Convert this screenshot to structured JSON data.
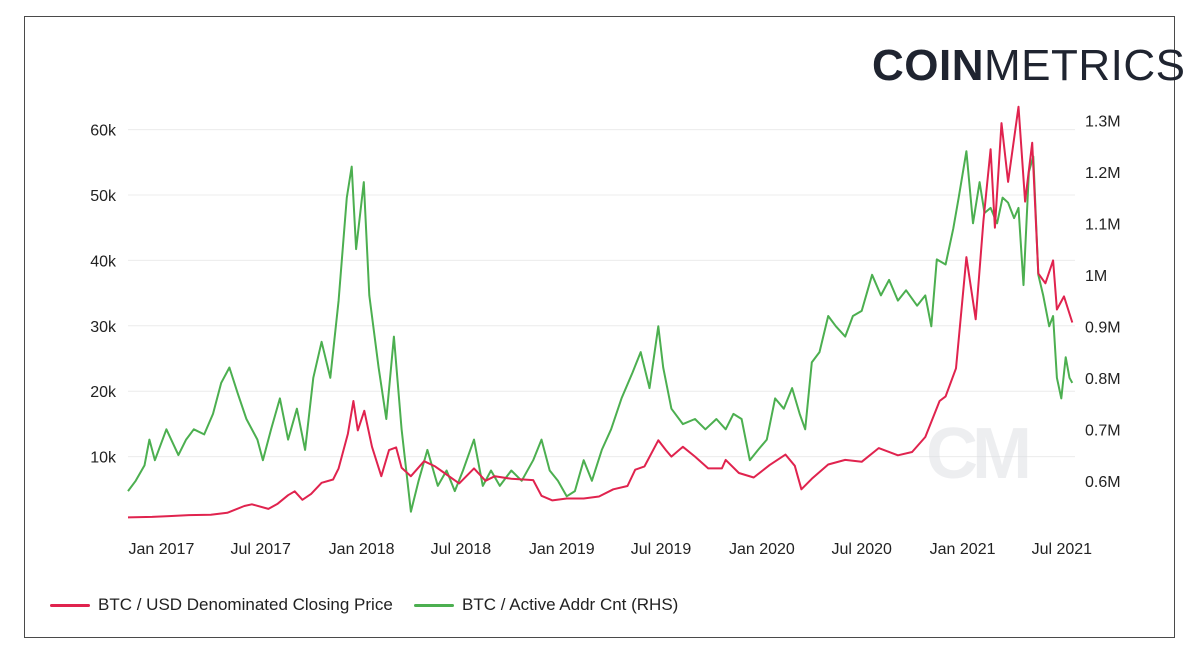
{
  "brand": {
    "bold": "COIN",
    "light": "METRICS"
  },
  "watermark": "CM",
  "chart_data": {
    "type": "line",
    "title": "",
    "x_start": "2016-11-01",
    "x_end": "2021-07-25",
    "x_ticks": [
      {
        "label": "Jan 2017",
        "date": "2017-01-01"
      },
      {
        "label": "Jul 2017",
        "date": "2017-07-01"
      },
      {
        "label": "Jan 2018",
        "date": "2018-01-01"
      },
      {
        "label": "Jul 2018",
        "date": "2018-07-01"
      },
      {
        "label": "Jan 2019",
        "date": "2019-01-01"
      },
      {
        "label": "Jul 2019",
        "date": "2019-07-01"
      },
      {
        "label": "Jan 2020",
        "date": "2020-01-01"
      },
      {
        "label": "Jul 2020",
        "date": "2020-07-01"
      },
      {
        "label": "Jan 2021",
        "date": "2021-01-01"
      },
      {
        "label": "Jul 2021",
        "date": "2021-07-01"
      }
    ],
    "y_left": {
      "range": [
        0,
        63000
      ],
      "ticks": [
        {
          "label": "10k",
          "value": 10000
        },
        {
          "label": "20k",
          "value": 20000
        },
        {
          "label": "30k",
          "value": 30000
        },
        {
          "label": "40k",
          "value": 40000
        },
        {
          "label": "50k",
          "value": 50000
        },
        {
          "label": "60k",
          "value": 60000
        }
      ]
    },
    "y_right": {
      "range": [
        520000,
        1320000
      ],
      "ticks": [
        {
          "label": "0.6M",
          "value": 600000
        },
        {
          "label": "0.7M",
          "value": 700000
        },
        {
          "label": "0.8M",
          "value": 800000
        },
        {
          "label": "0.9M",
          "value": 900000
        },
        {
          "label": "1M",
          "value": 1000000
        },
        {
          "label": "1.1M",
          "value": 1100000
        },
        {
          "label": "1.2M",
          "value": 1200000
        },
        {
          "label": "1.3M",
          "value": 1300000
        }
      ]
    },
    "series": [
      {
        "name": "BTC / USD Denominated Closing Price",
        "axis": "left",
        "color": "#e0234e",
        "points": [
          [
            "2016-11-01",
            700
          ],
          [
            "2016-12-15",
            780
          ],
          [
            "2017-01-15",
            900
          ],
          [
            "2017-02-20",
            1050
          ],
          [
            "2017-04-01",
            1100
          ],
          [
            "2017-05-01",
            1400
          ],
          [
            "2017-06-01",
            2450
          ],
          [
            "2017-06-15",
            2700
          ],
          [
            "2017-07-15",
            2000
          ],
          [
            "2017-08-01",
            2800
          ],
          [
            "2017-08-20",
            4100
          ],
          [
            "2017-09-01",
            4700
          ],
          [
            "2017-09-15",
            3400
          ],
          [
            "2017-10-01",
            4300
          ],
          [
            "2017-10-20",
            6000
          ],
          [
            "2017-11-10",
            6500
          ],
          [
            "2017-11-20",
            8200
          ],
          [
            "2017-12-07",
            13500
          ],
          [
            "2017-12-17",
            18500
          ],
          [
            "2017-12-25",
            14000
          ],
          [
            "2018-01-06",
            17000
          ],
          [
            "2018-01-20",
            11500
          ],
          [
            "2018-02-06",
            7000
          ],
          [
            "2018-02-20",
            11000
          ],
          [
            "2018-03-05",
            11400
          ],
          [
            "2018-03-15",
            8300
          ],
          [
            "2018-04-01",
            7000
          ],
          [
            "2018-04-25",
            9300
          ],
          [
            "2018-05-15",
            8500
          ],
          [
            "2018-06-01",
            7500
          ],
          [
            "2018-06-28",
            5900
          ],
          [
            "2018-07-25",
            8200
          ],
          [
            "2018-08-15",
            6300
          ],
          [
            "2018-09-01",
            7000
          ],
          [
            "2018-10-01",
            6600
          ],
          [
            "2018-11-10",
            6400
          ],
          [
            "2018-11-25",
            4000
          ],
          [
            "2018-12-15",
            3300
          ],
          [
            "2019-01-10",
            3600
          ],
          [
            "2019-02-10",
            3600
          ],
          [
            "2019-03-10",
            3900
          ],
          [
            "2019-04-05",
            5000
          ],
          [
            "2019-05-01",
            5500
          ],
          [
            "2019-05-15",
            8000
          ],
          [
            "2019-06-01",
            8500
          ],
          [
            "2019-06-26",
            12500
          ],
          [
            "2019-07-10",
            11000
          ],
          [
            "2019-07-20",
            10000
          ],
          [
            "2019-08-10",
            11500
          ],
          [
            "2019-09-01",
            10000
          ],
          [
            "2019-09-25",
            8200
          ],
          [
            "2019-10-20",
            8200
          ],
          [
            "2019-10-27",
            9500
          ],
          [
            "2019-11-20",
            7500
          ],
          [
            "2019-12-17",
            6800
          ],
          [
            "2020-01-15",
            8700
          ],
          [
            "2020-02-13",
            10300
          ],
          [
            "2020-03-01",
            8600
          ],
          [
            "2020-03-13",
            5000
          ],
          [
            "2020-04-01",
            6600
          ],
          [
            "2020-05-01",
            8800
          ],
          [
            "2020-06-01",
            9500
          ],
          [
            "2020-07-01",
            9200
          ],
          [
            "2020-08-01",
            11300
          ],
          [
            "2020-09-05",
            10200
          ],
          [
            "2020-10-01",
            10700
          ],
          [
            "2020-10-25",
            13000
          ],
          [
            "2020-11-20",
            18500
          ],
          [
            "2020-12-01",
            19200
          ],
          [
            "2020-12-20",
            23500
          ],
          [
            "2021-01-08",
            40500
          ],
          [
            "2021-01-25",
            31000
          ],
          [
            "2021-02-08",
            46000
          ],
          [
            "2021-02-21",
            57000
          ],
          [
            "2021-03-01",
            45000
          ],
          [
            "2021-03-13",
            61000
          ],
          [
            "2021-03-25",
            52000
          ],
          [
            "2021-04-13",
            63500
          ],
          [
            "2021-04-25",
            49000
          ],
          [
            "2021-05-08",
            58000
          ],
          [
            "2021-05-19",
            38000
          ],
          [
            "2021-06-01",
            36500
          ],
          [
            "2021-06-15",
            40000
          ],
          [
            "2021-06-22",
            32500
          ],
          [
            "2021-07-05",
            34500
          ],
          [
            "2021-07-20",
            30500
          ]
        ]
      },
      {
        "name": "BTC / Active Addr Cnt (RHS)",
        "axis": "right",
        "color": "#4caf50",
        "points": [
          [
            "2016-11-01",
            580000
          ],
          [
            "2016-11-15",
            600000
          ],
          [
            "2016-12-01",
            630000
          ],
          [
            "2016-12-10",
            680000
          ],
          [
            "2016-12-20",
            640000
          ],
          [
            "2017-01-10",
            700000
          ],
          [
            "2017-02-01",
            650000
          ],
          [
            "2017-02-15",
            680000
          ],
          [
            "2017-03-01",
            700000
          ],
          [
            "2017-03-20",
            690000
          ],
          [
            "2017-04-05",
            730000
          ],
          [
            "2017-04-20",
            790000
          ],
          [
            "2017-05-05",
            820000
          ],
          [
            "2017-05-20",
            770000
          ],
          [
            "2017-06-05",
            720000
          ],
          [
            "2017-06-25",
            680000
          ],
          [
            "2017-07-05",
            640000
          ],
          [
            "2017-07-20",
            700000
          ],
          [
            "2017-08-05",
            760000
          ],
          [
            "2017-08-20",
            680000
          ],
          [
            "2017-09-05",
            740000
          ],
          [
            "2017-09-20",
            660000
          ],
          [
            "2017-10-05",
            800000
          ],
          [
            "2017-10-20",
            870000
          ],
          [
            "2017-11-05",
            800000
          ],
          [
            "2017-11-20",
            950000
          ],
          [
            "2017-12-05",
            1150000
          ],
          [
            "2017-12-14",
            1210000
          ],
          [
            "2017-12-22",
            1050000
          ],
          [
            "2018-01-05",
            1180000
          ],
          [
            "2018-01-15",
            960000
          ],
          [
            "2018-02-01",
            820000
          ],
          [
            "2018-02-15",
            720000
          ],
          [
            "2018-03-01",
            880000
          ],
          [
            "2018-03-15",
            700000
          ],
          [
            "2018-04-01",
            540000
          ],
          [
            "2018-04-15",
            600000
          ],
          [
            "2018-05-01",
            660000
          ],
          [
            "2018-05-20",
            590000
          ],
          [
            "2018-06-05",
            620000
          ],
          [
            "2018-06-20",
            580000
          ],
          [
            "2018-07-05",
            620000
          ],
          [
            "2018-07-25",
            680000
          ],
          [
            "2018-08-10",
            590000
          ],
          [
            "2018-08-25",
            620000
          ],
          [
            "2018-09-10",
            590000
          ],
          [
            "2018-10-01",
            620000
          ],
          [
            "2018-10-20",
            600000
          ],
          [
            "2018-11-10",
            640000
          ],
          [
            "2018-11-25",
            680000
          ],
          [
            "2018-12-10",
            620000
          ],
          [
            "2018-12-25",
            600000
          ],
          [
            "2019-01-10",
            570000
          ],
          [
            "2019-01-25",
            580000
          ],
          [
            "2019-02-10",
            640000
          ],
          [
            "2019-02-25",
            600000
          ],
          [
            "2019-03-15",
            660000
          ],
          [
            "2019-04-01",
            700000
          ],
          [
            "2019-04-20",
            760000
          ],
          [
            "2019-05-10",
            810000
          ],
          [
            "2019-05-25",
            850000
          ],
          [
            "2019-06-10",
            780000
          ],
          [
            "2019-06-26",
            900000
          ],
          [
            "2019-07-05",
            820000
          ],
          [
            "2019-07-20",
            740000
          ],
          [
            "2019-08-10",
            710000
          ],
          [
            "2019-09-01",
            720000
          ],
          [
            "2019-09-20",
            700000
          ],
          [
            "2019-10-10",
            720000
          ],
          [
            "2019-10-27",
            700000
          ],
          [
            "2019-11-10",
            730000
          ],
          [
            "2019-11-25",
            720000
          ],
          [
            "2019-12-10",
            640000
          ],
          [
            "2019-12-25",
            660000
          ],
          [
            "2020-01-10",
            680000
          ],
          [
            "2020-01-25",
            760000
          ],
          [
            "2020-02-10",
            740000
          ],
          [
            "2020-02-25",
            780000
          ],
          [
            "2020-03-10",
            730000
          ],
          [
            "2020-03-20",
            700000
          ],
          [
            "2020-04-01",
            830000
          ],
          [
            "2020-04-15",
            850000
          ],
          [
            "2020-05-01",
            920000
          ],
          [
            "2020-05-15",
            900000
          ],
          [
            "2020-06-01",
            880000
          ],
          [
            "2020-06-15",
            920000
          ],
          [
            "2020-07-01",
            930000
          ],
          [
            "2020-07-20",
            1000000
          ],
          [
            "2020-08-05",
            960000
          ],
          [
            "2020-08-20",
            990000
          ],
          [
            "2020-09-05",
            950000
          ],
          [
            "2020-09-20",
            970000
          ],
          [
            "2020-10-10",
            940000
          ],
          [
            "2020-10-25",
            960000
          ],
          [
            "2020-11-05",
            900000
          ],
          [
            "2020-11-15",
            1030000
          ],
          [
            "2020-12-01",
            1020000
          ],
          [
            "2020-12-15",
            1090000
          ],
          [
            "2020-12-25",
            1150000
          ],
          [
            "2021-01-08",
            1240000
          ],
          [
            "2021-01-20",
            1100000
          ],
          [
            "2021-02-01",
            1180000
          ],
          [
            "2021-02-10",
            1120000
          ],
          [
            "2021-02-21",
            1130000
          ],
          [
            "2021-03-05",
            1100000
          ],
          [
            "2021-03-15",
            1150000
          ],
          [
            "2021-03-25",
            1140000
          ],
          [
            "2021-04-05",
            1110000
          ],
          [
            "2021-04-13",
            1130000
          ],
          [
            "2021-04-22",
            980000
          ],
          [
            "2021-05-02",
            1200000
          ],
          [
            "2021-05-10",
            1230000
          ],
          [
            "2021-05-19",
            1000000
          ],
          [
            "2021-05-28",
            960000
          ],
          [
            "2021-06-08",
            900000
          ],
          [
            "2021-06-15",
            920000
          ],
          [
            "2021-06-22",
            800000
          ],
          [
            "2021-06-30",
            760000
          ],
          [
            "2021-07-08",
            840000
          ],
          [
            "2021-07-15",
            800000
          ],
          [
            "2021-07-20",
            790000
          ]
        ]
      }
    ],
    "legend_position": "bottom-left"
  }
}
